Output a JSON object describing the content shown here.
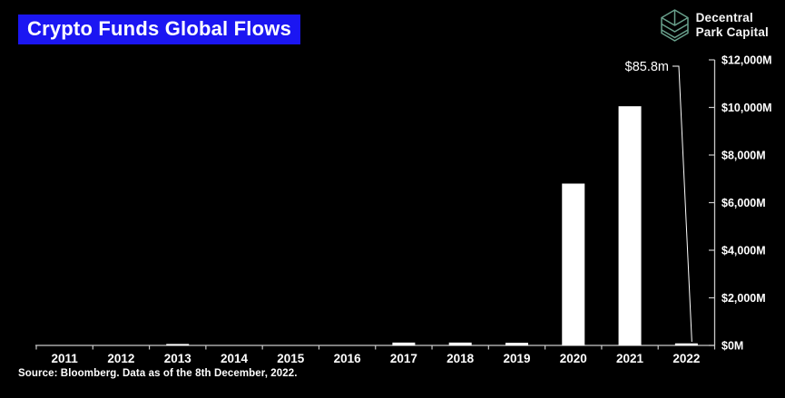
{
  "header": {
    "title": "Crypto Funds Global Flows",
    "title_bg_color": "#1b16f2",
    "title_text_color": "#ffffff"
  },
  "logo": {
    "icon": "layered-cube-icon",
    "icon_color": "#69a08c",
    "line1": "Decentral",
    "line2": "Park Capital"
  },
  "source_note": "Source: Bloomberg. Data as of the 8th December, 2022.",
  "chart_data": {
    "type": "bar",
    "title": "Crypto Funds Global Flows",
    "categories": [
      "2011",
      "2012",
      "2013",
      "2014",
      "2015",
      "2016",
      "2017",
      "2018",
      "2019",
      "2020",
      "2021",
      "2022"
    ],
    "values": [
      0,
      0,
      60,
      0,
      0,
      0,
      120,
      120,
      110,
      6800,
      10050,
      86
    ],
    "unit": "millions USD",
    "ylim": [
      0,
      12000
    ],
    "y_tick_values": [
      0,
      2000,
      4000,
      6000,
      8000,
      10000,
      12000
    ],
    "y_tick_labels": [
      "$0M",
      "$2,000M",
      "$4,000M",
      "$6,000M",
      "$8,000M",
      "$10,000M",
      "$12,000M"
    ],
    "y_axis_side": "right",
    "grid": false,
    "legend": "none",
    "bar_color": "#ffffff",
    "axis_color": "#c9c9c9",
    "label_color": "#ffffff",
    "background_color": "#000000",
    "annotation": {
      "text": "$85.8m",
      "target_category": "2022",
      "target_value": 85.8
    }
  }
}
